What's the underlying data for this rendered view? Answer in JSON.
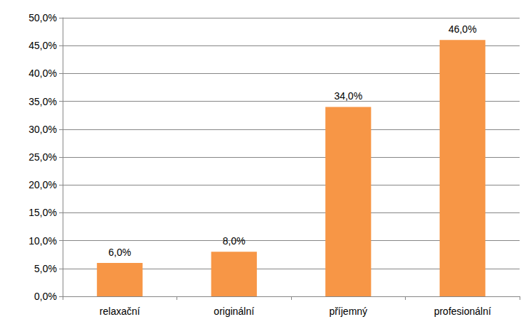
{
  "chart_data": {
    "type": "bar",
    "categories": [
      "relaxační",
      "originální",
      "příjemný",
      "profesionální"
    ],
    "values": [
      6,
      8,
      34,
      46
    ],
    "value_labels": [
      "6,0%",
      "8,0%",
      "34,0%",
      "46,0%"
    ],
    "color": "#f79646",
    "ylim": [
      0,
      50
    ],
    "yticks": [
      {
        "value": 0,
        "label": "0,0%"
      },
      {
        "value": 5,
        "label": "5,0%"
      },
      {
        "value": 10,
        "label": "10,0%"
      },
      {
        "value": 15,
        "label": "15,0%"
      },
      {
        "value": 20,
        "label": "20,0%"
      },
      {
        "value": 25,
        "label": "25,0%"
      },
      {
        "value": 30,
        "label": "30,0%"
      },
      {
        "value": 35,
        "label": "35,0%"
      },
      {
        "value": 40,
        "label": "40,0%"
      },
      {
        "value": 45,
        "label": "45,0%"
      },
      {
        "value": 50,
        "label": "50,0%"
      }
    ],
    "grid": true,
    "data_labels": true
  }
}
